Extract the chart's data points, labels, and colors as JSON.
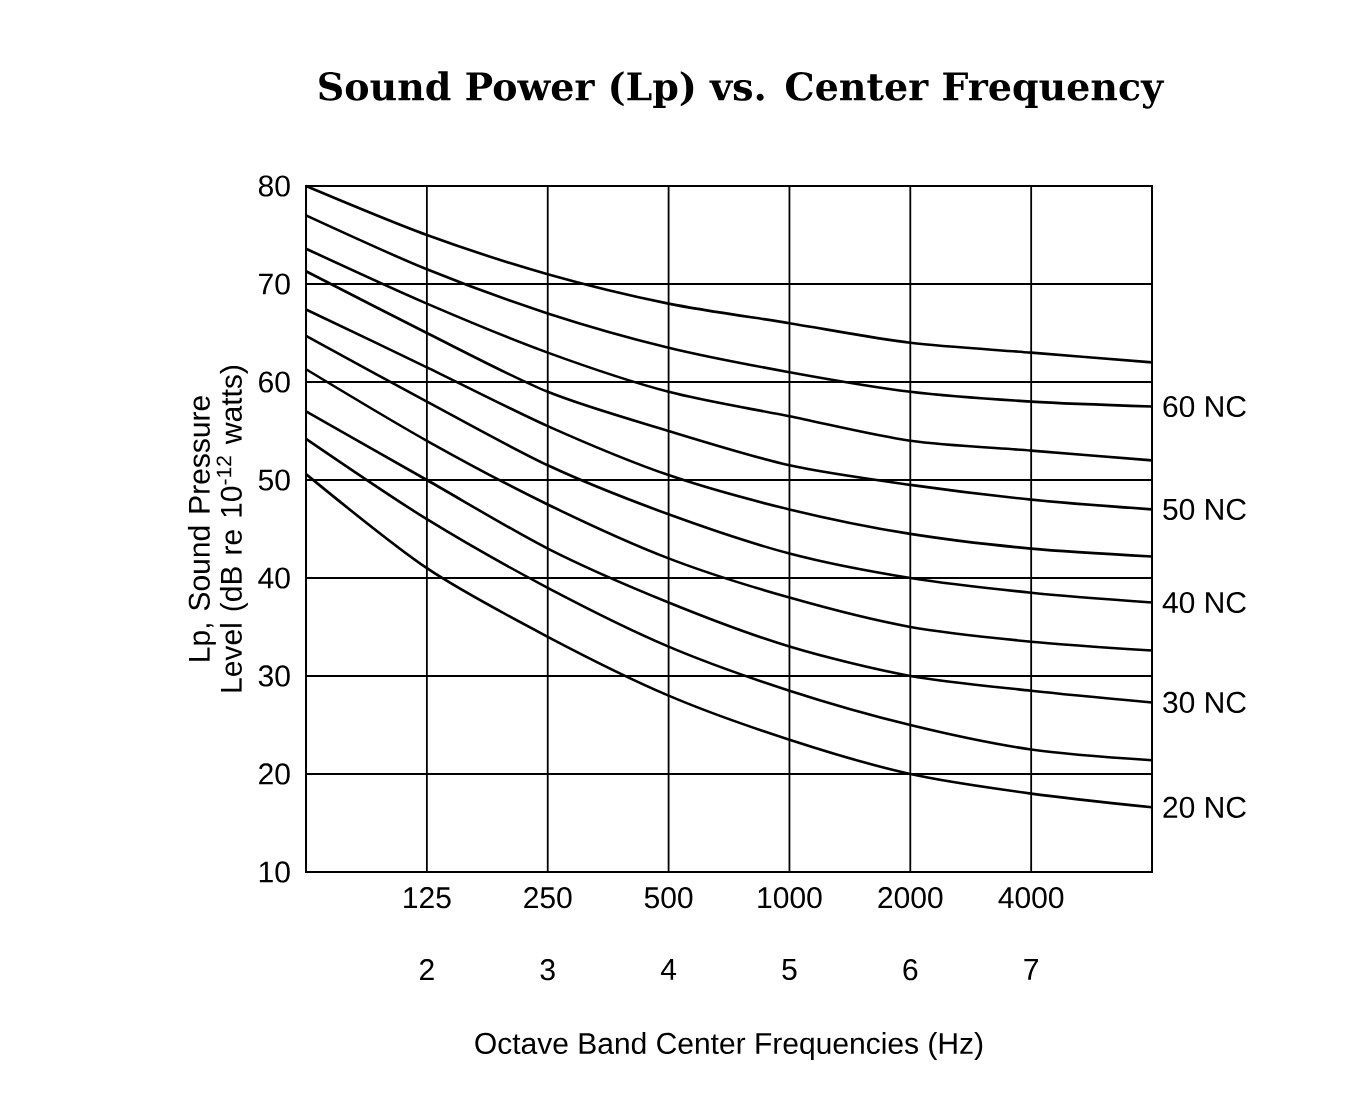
{
  "chart_data": {
    "type": "line",
    "title": "Sound Power (Lp) vs. Center Frequency",
    "xlabel": "Octave Band Center Frequencies (Hz)",
    "ylabel": "Lp, Sound  Pressure Level (dB re 10$^{-12}$ watts)",
    "x": [
      62.5,
      125,
      250,
      500,
      1000,
      2000,
      4000,
      8000
    ],
    "xlim": [
      62.5,
      8000
    ],
    "ylim": [
      10,
      80
    ],
    "yticks": [
      10,
      20,
      30,
      40,
      50,
      60,
      70,
      80
    ],
    "log": "x",
    "xticks": [
      125,
      250,
      500,
      1000,
      2000,
      4000
    ],
    "x2lim": [
      1,
      8
    ],
    "x2ticks": [
      2,
      3,
      4,
      5,
      6,
      7
    ],
    "grid": true,
    "series": [
      {
        "color": "#000000",
        "values": [
          80,
          75,
          71,
          68,
          66,
          64,
          63,
          62
        ]
      },
      {
        "name": "60 NC",
        "color": "#000000",
        "values": [
          77,
          71.5,
          67,
          63.5,
          61,
          59,
          58,
          57.5
        ]
      },
      {
        "color": "#000000",
        "values": [
          73.6,
          68,
          63,
          59,
          56.5,
          54,
          53,
          52
        ]
      },
      {
        "name": "50 NC",
        "color": "#000000",
        "values": [
          71.3,
          65,
          59,
          55,
          51.5,
          49.5,
          48,
          47
        ]
      },
      {
        "color": "#000000",
        "values": [
          67.4,
          61.5,
          55.5,
          50.5,
          47,
          44.5,
          43,
          42.2
        ]
      },
      {
        "name": "40 NC",
        "color": "#000000",
        "values": [
          64.7,
          58,
          51.5,
          46.5,
          42.5,
          40,
          38.5,
          37.5
        ]
      },
      {
        "color": "#000000",
        "values": [
          61.3,
          54,
          47.5,
          42,
          38,
          35,
          33.5,
          32.6
        ]
      },
      {
        "name": "30 NC",
        "color": "#000000",
        "values": [
          57,
          50,
          43,
          37.5,
          33,
          30,
          28.5,
          27.3
        ]
      },
      {
        "color": "#000000",
        "values": [
          54.2,
          46,
          39,
          33,
          28.5,
          25,
          22.5,
          21.4
        ]
      },
      {
        "name": "20 NC",
        "color": "#000000",
        "values": [
          50.6,
          41,
          34,
          28,
          23.5,
          20,
          18,
          16.6
        ]
      }
    ]
  }
}
